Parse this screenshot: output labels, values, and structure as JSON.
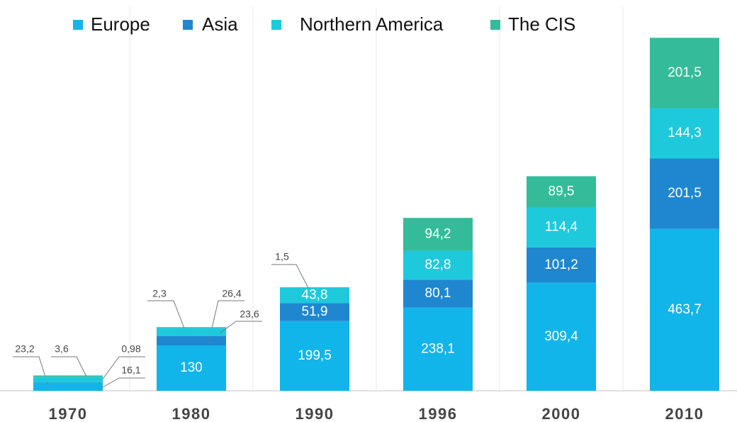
{
  "chart_data": {
    "type": "stacked_bar",
    "categories": [
      "1970",
      "1980",
      "1990",
      "1996",
      "2000",
      "2010"
    ],
    "series": [
      {
        "name": "Europe",
        "color": "#12b5ea",
        "values": [
          23.2,
          130,
          199.5,
          238.1,
          309.4,
          463.7
        ],
        "value_labels": [
          "23,2",
          "130",
          "199,5",
          "238,1",
          "309,4",
          "463,7"
        ]
      },
      {
        "name": "Asia",
        "color": "#1f87d0",
        "values": [
          0.98,
          26.4,
          51.9,
          80.1,
          101.2,
          201.5
        ],
        "value_labels": [
          "0,98",
          "26,4",
          "51,9",
          "80,1",
          "101,2",
          "201,5"
        ]
      },
      {
        "name": "Northern America",
        "color": "#1ec9dc",
        "values": [
          16.1,
          23.6,
          43.8,
          82.8,
          114.4,
          144.3
        ],
        "value_labels": [
          "16,1",
          "23,6",
          "43,8",
          "82,8",
          "114,4",
          "144,3"
        ]
      },
      {
        "name": "The CIS",
        "color": "#34bc9a",
        "values": [
          3.6,
          2.3,
          1.5,
          94.2,
          89.5,
          201.5
        ],
        "value_labels": [
          "3,6",
          "2,3",
          "1,5",
          "94,2",
          "89,5",
          "201,5"
        ]
      }
    ],
    "ylim": [
      0,
      1040
    ],
    "legend": "top"
  }
}
